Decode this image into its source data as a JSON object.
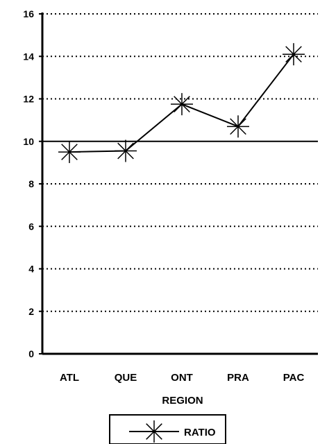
{
  "chart_data": {
    "type": "line",
    "title": "",
    "xlabel": "REGION",
    "ylabel": "",
    "categories": [
      "ATL",
      "QUE",
      "ONT",
      "PRA",
      "PAC"
    ],
    "series": [
      {
        "name": "RATIO",
        "values": [
          9.5,
          9.55,
          11.75,
          10.7,
          14.1
        ],
        "color": "#000000",
        "marker": "asterisk"
      }
    ],
    "ylim": [
      0,
      16
    ],
    "yticks": [
      "0",
      "2",
      "4",
      "6",
      "8",
      "10",
      "12",
      "14",
      "16"
    ],
    "reference_line": 10,
    "grid": "horizontal-dotted",
    "legend": "bottom-center"
  }
}
